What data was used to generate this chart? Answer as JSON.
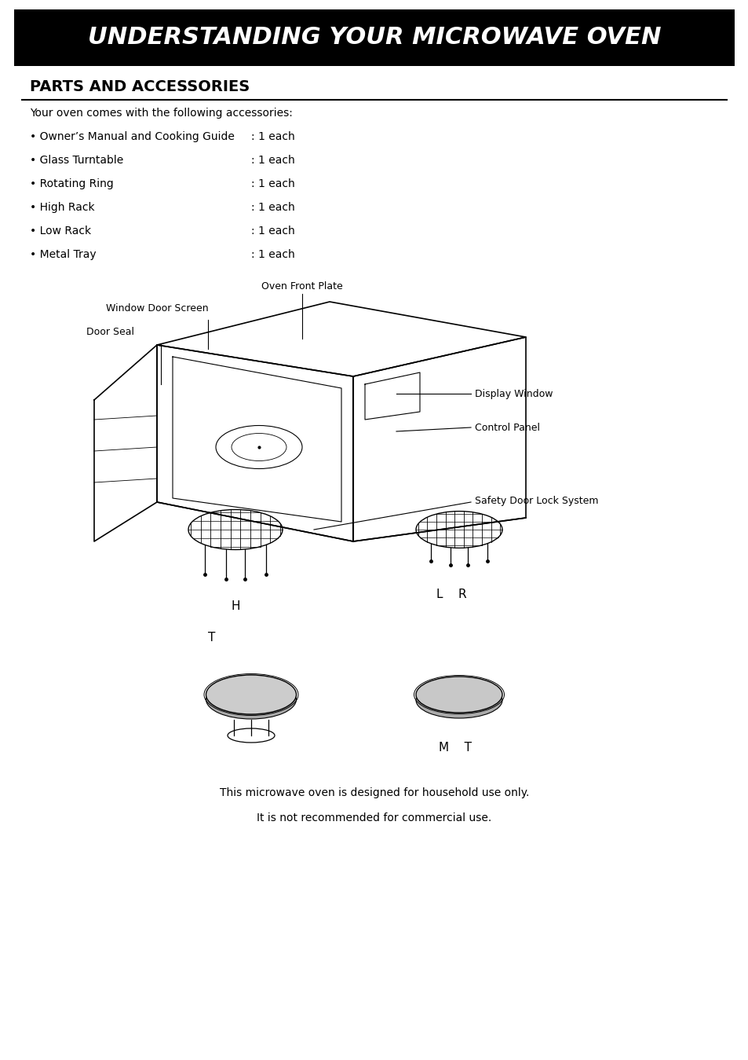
{
  "title": "UNDERSTANDING YOUR MICROWAVE OVEN",
  "subtitle": "PARTS AND ACCESSORIES",
  "bg_color": "#ffffff",
  "title_bg": "#000000",
  "title_fg": "#ffffff",
  "intro_text": "Your oven comes with the following accessories:",
  "accessories": [
    [
      "• Owner’s Manual and Cooking Guide",
      ": 1 each"
    ],
    [
      "• Glass Turntable",
      ": 1 each"
    ],
    [
      "• Rotating Ring",
      ": 1 each"
    ],
    [
      "• High Rack",
      ": 1 each"
    ],
    [
      "• Low Rack",
      ": 1 each"
    ],
    [
      "• Metal Tray",
      ": 1 each"
    ]
  ],
  "footer_text": [
    "This microwave oven is designed for household use only.",
    "It is not recommended for commercial use."
  ]
}
